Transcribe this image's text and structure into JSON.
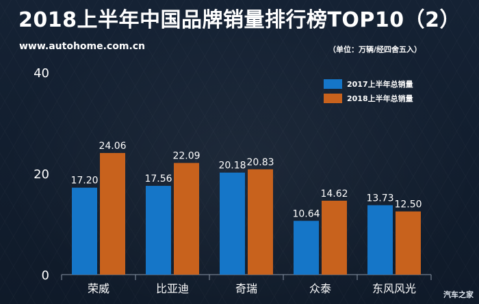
{
  "header": {
    "title": "2018上半年中国品牌销量排行榜TOP10（2）",
    "source": "www.autohome.com.cn",
    "unit": "（单位：万辆/经四舍五入）"
  },
  "watermark": "汽车之家",
  "colors": {
    "series_2017": "#1576c8",
    "series_2018": "#c8621d",
    "axis": "#8a96a6"
  },
  "chart_data": {
    "type": "bar",
    "categories": [
      "荣威",
      "比亚迪",
      "奇瑞",
      "众泰",
      "东风风光"
    ],
    "series": [
      {
        "name": "2017上半年总销量",
        "values": [
          17.2,
          17.56,
          20.18,
          10.64,
          13.73
        ],
        "labels": [
          "17.20",
          "17.56",
          "20.18",
          "10.64",
          "13.73"
        ]
      },
      {
        "name": "2018上半年总销量",
        "values": [
          24.06,
          22.09,
          20.83,
          14.62,
          12.5
        ],
        "labels": [
          "24.06",
          "22.09",
          "20.83",
          "14.62",
          "12.50"
        ]
      }
    ],
    "yticks": [
      "0",
      "20",
      "40"
    ],
    "ylim": [
      0,
      40
    ],
    "grid": false,
    "legend": "top-right"
  }
}
